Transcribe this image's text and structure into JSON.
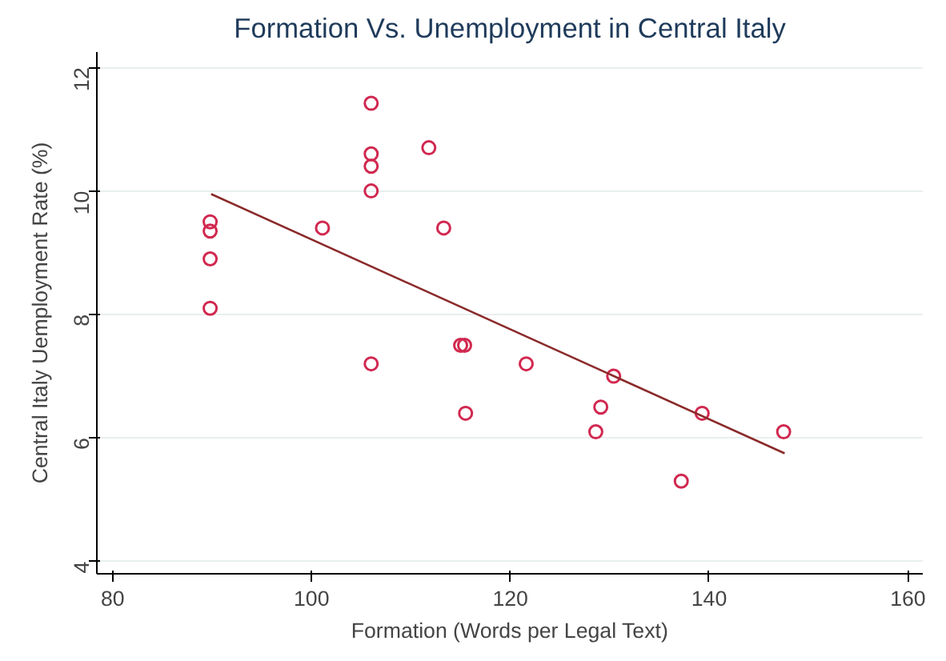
{
  "chart_data": {
    "type": "scatter",
    "title": "Formation Vs. Unemployment in Central Italy",
    "xlabel": "Formation (Words per Legal Text)",
    "ylabel": "Central Italy Uemployment Rate (%)",
    "xlim": [
      78.4,
      161.5
    ],
    "ylim": [
      3.8,
      12.25
    ],
    "xticks": [
      80,
      100,
      120,
      140,
      160
    ],
    "yticks": [
      4,
      6,
      8,
      10,
      12
    ],
    "grid": "y",
    "marker": "circle",
    "series": [
      {
        "color": "#d1284f",
        "x": [
          89.8,
          89.8,
          89.8,
          89.8,
          101.1,
          106.0,
          106.0,
          106.0,
          106.0,
          106.0,
          111.8,
          113.3,
          115.0,
          115.4,
          115.5,
          121.6,
          130.4,
          129.1,
          128.6,
          137.2,
          139.3,
          147.5
        ],
        "values": [
          9.5,
          9.35,
          8.9,
          8.1,
          9.4,
          7.2,
          11.42,
          10.6,
          10.4,
          10.0,
          10.7,
          9.4,
          7.5,
          7.5,
          6.4,
          7.2,
          7.0,
          6.5,
          6.1,
          5.3,
          6.4,
          6.1
        ]
      },
      {
        "type": "line",
        "color": "#8b2a2a",
        "x": [
          89.9,
          147.6
        ],
        "values": [
          9.95,
          5.75
        ],
        "marker": "none"
      }
    ]
  }
}
